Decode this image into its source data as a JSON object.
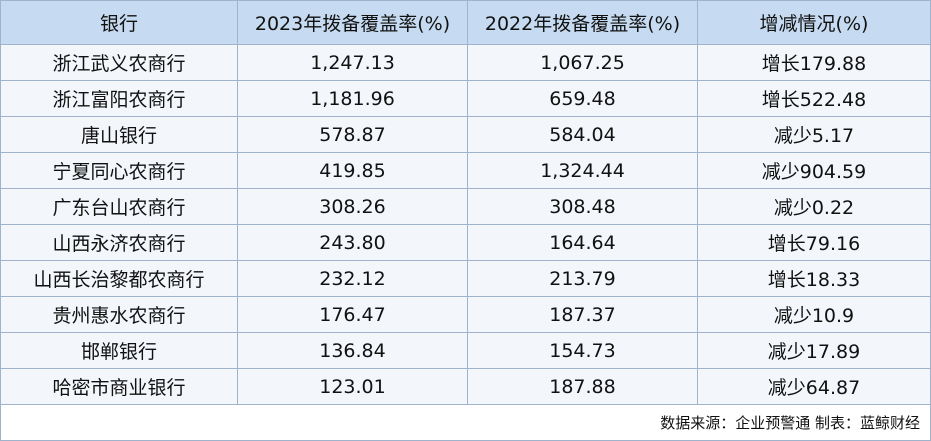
{
  "table": {
    "header": [
      "银行",
      "2023年拨备覆盖率(%)",
      "2022年拨备覆盖率(%)",
      "增减情况(%)"
    ],
    "rows": [
      [
        "浙江武义农商行",
        "1,247.13",
        "1,067.25",
        "增长179.88"
      ],
      [
        "浙江富阳农商行",
        "1,181.96",
        "659.48",
        "增长522.48"
      ],
      [
        "唐山银行",
        "578.87",
        "584.04",
        "减少5.17"
      ],
      [
        "宁夏同心农商行",
        "419.85",
        "1,324.44",
        "减少904.59"
      ],
      [
        "广东台山农商行",
        "308.26",
        "308.48",
        "减少0.22"
      ],
      [
        "山西永济农商行",
        "243.80",
        "164.64",
        "增长79.16"
      ],
      [
        "山西长治黎都农商行",
        "232.12",
        "213.79",
        "增长18.33"
      ],
      [
        "贵州惠水农商行",
        "176.47",
        "187.37",
        "减少10.9"
      ],
      [
        "邯郸银行",
        "136.84",
        "154.73",
        "减少17.89"
      ],
      [
        "哈密市商业银行",
        "123.01",
        "187.88",
        "减少64.87"
      ]
    ],
    "footer": "数据来源：企业预警通 制表：蓝鲸财经"
  }
}
